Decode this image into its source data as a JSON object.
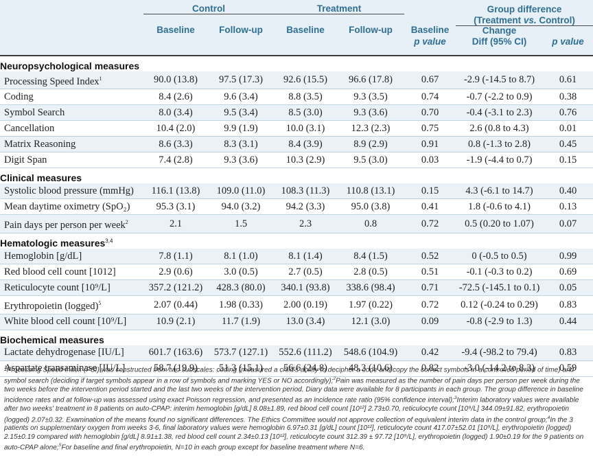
{
  "header": {
    "control": "Control",
    "treatment": "Treatment",
    "group_difference": "Group difference",
    "treatment_vs_control_pre": "(Treatment ",
    "vs": "vs.",
    "treatment_vs_control_post": " Control)",
    "baseline": "Baseline",
    "follow_up": "Follow-up",
    "baseline_p_line1": "Baseline",
    "baseline_p_line2": "p value",
    "change_line1": "Change",
    "change_line2": "Diff (95% CI)",
    "p_value": "p value"
  },
  "sections": [
    {
      "title": "Neuropsychological measures",
      "sup": "",
      "rows": [
        {
          "label": "Processing Speed Index",
          "sup": "1",
          "c_base": "90.0 (13.8)",
          "c_follow": "97.5 (17.3)",
          "t_base": "92.6 (15.5)",
          "t_follow": "96.6 (17.8)",
          "base_p": "0.67",
          "diff": "-2.9 (-14.5 to 8.7)",
          "p": "0.61"
        },
        {
          "label": "Coding",
          "sup": "",
          "c_base": "8.4 (2.6)",
          "c_follow": "9.6 (3.4)",
          "t_base": "8.8 (3.5)",
          "t_follow": "9.3 (3.5)",
          "base_p": "0.74",
          "diff": "-0.7 (-2.2 to 0.9)",
          "p": "0.38"
        },
        {
          "label": "Symbol Search",
          "sup": "",
          "c_base": "8.0 (3.4)",
          "c_follow": "9.5 (3.4)",
          "t_base": "8.5 (3.0)",
          "t_follow": "9.3 (3.6)",
          "base_p": "0.70",
          "diff": "-0.4 (-3.1 to 2.3)",
          "p": "0.76"
        },
        {
          "label": "Cancellation",
          "sup": "",
          "c_base": "10.4 (2.0)",
          "c_follow": "9.9 (1.9)",
          "t_base": "10.0 (3.1)",
          "t_follow": "12.3 (2.3)",
          "base_p": "0.75",
          "diff": "2.6 (0.8 to 4.3)",
          "p": "0.01"
        },
        {
          "label": "Matrix Reasoning",
          "sup": "",
          "c_base": "8.6 (3.3)",
          "c_follow": "8.3 (3.1)",
          "t_base": "8.4 (3.9)",
          "t_follow": "8.9 (2.9)",
          "base_p": "0.91",
          "diff": "0.8 (-1.3 to 2.8)",
          "p": "0.45"
        },
        {
          "label": "Digit Span",
          "sup": "",
          "c_base": "7.4 (2.8)",
          "c_follow": "9.3 (3.6)",
          "t_base": "10.3 (2.9)",
          "t_follow": "9.5 (3.0)",
          "base_p": "0.03",
          "diff": "-1.9 (-4.4 to 0.7)",
          "p": "0.15"
        }
      ]
    },
    {
      "title": "Clinical measures",
      "sup": "",
      "rows": [
        {
          "label": "Systolic blood pressure (mmHg)",
          "sup": "",
          "c_base": "116.1 (13.8)",
          "c_follow": "109.0 (11.0)",
          "t_base": "108.3 (11.3)",
          "t_follow": "110.8 (13.1)",
          "base_p": "0.15",
          "diff": "4.3 (-6.1 to 14.7)",
          "p": "0.40"
        },
        {
          "label": "Mean daytime oximetry (SpO₂)",
          "sup": "",
          "c_base": "95.3 (3.1)",
          "c_follow": "94.0 (3.2)",
          "t_base": "94.2 (3.3)",
          "t_follow": "95.0 (3.8)",
          "base_p": "0.41",
          "diff": "1.8 (-0.6 to 4.1)",
          "p": "0.13"
        },
        {
          "label": "Pain days per person per week",
          "sup": "2",
          "c_base": "2.1",
          "c_follow": "1.5",
          "t_base": "2.3",
          "t_follow": "0.8",
          "base_p": "0.72",
          "diff": "0.5 (0.20 to 1.07)",
          "p": "0.07"
        }
      ]
    },
    {
      "title": "Hematologic measures",
      "sup": "3,4",
      "rows": [
        {
          "label": "Hemoglobin [g/dL]",
          "sup": "",
          "c_base": "7.8 (1.1)",
          "c_follow": "8.1 (1.0)",
          "t_base": "8.1 (1.4)",
          "t_follow": "8.4 (1.5)",
          "base_p": "0.52",
          "diff": "0 (-0.5 to 0.5)",
          "p": "0.99"
        },
        {
          "label": "Red blood cell count [1012]",
          "sup": "",
          "c_base": "2.9 (0.6)",
          "c_follow": "3.0 (0.5)",
          "t_base": "2.7 (0.5)",
          "t_follow": "2.8 (0.5)",
          "base_p": "0.51",
          "diff": "-0.1 (-0.3 to 0.2)",
          "p": "0.69"
        },
        {
          "label": "Reticulocyte count [10⁹/L]",
          "sup": "",
          "c_base": "357.2 (121.2)",
          "c_follow": "428.3 (80.0)",
          "t_base": "340.1 (93.8)",
          "t_follow": "338.6 (98.4)",
          "base_p": "0.71",
          "diff": "-72.5 (-145.1 to 0.1)",
          "p": "0.05"
        },
        {
          "label": "Erythropoietin (logged)",
          "sup": "5",
          "c_base": "2.07 (0.44)",
          "c_follow": "1.98 (0.33)",
          "t_base": "2.00 (0.19)",
          "t_follow": "1.97 (0.22)",
          "base_p": "0.72",
          "diff": "0.12 (-0.24 to 0.29)",
          "p": "0.83"
        },
        {
          "label": "White blood cell count [10⁹/L]",
          "sup": "",
          "c_base": "10.9 (2.1)",
          "c_follow": "11.7 (1.9)",
          "t_base": "13.0 (3.4)",
          "t_follow": "12.1 (3.0)",
          "base_p": "0.09",
          "diff": "-0.8 (-2.9 to 1.3)",
          "p": "0.44"
        }
      ]
    },
    {
      "title": "Biochemical measures",
      "sup": "",
      "rows": [
        {
          "label": "Lactate dehydrogenase [IU/L]",
          "sup": "",
          "c_base": "601.7 (163.6)",
          "c_follow": "573.7 (127.1)",
          "t_base": "552.6 (111.2)",
          "t_follow": "548.6 (104.9)",
          "base_p": "0.42",
          "diff": "-9.4 (-98.2 to 79.4)",
          "p": "0.83"
        },
        {
          "label": "Aspartate transaminase [IU/L]",
          "sup": "",
          "c_base": "58.7 (19.9)",
          "c_follow": "51.3 (15.1)",
          "t_base": "56.6 (24.8)",
          "t_follow": "48.3 (10.6)",
          "base_p": "0.82",
          "diff": "-3.0 (-14.2 to 8.3)",
          "p": "0.59"
        }
      ]
    }
  ],
  "footnote": [
    {
      "sup": "1",
      "text": "Processing Speed Index (PSI) was constructed from two subscales: coding (measured a child's ability to decipher a code and copy the correct symbols in a controlled period of time) and symbol search (deciding if target symbols appear in a row of symbols and marking YES or NO accordingly);"
    },
    {
      "sup": "2",
      "text": "Pain was measured as the number of pain days per person per week during the two weeks before the intervention period started and the last two weeks of the intervention period. Diary data were available for 8 participants in each group. The group difference in baseline incidence rates and at follow-up was assessed using exact Poisson regression, and presented as an incidence rate ratio (95% confidence interval);"
    },
    {
      "sup": "3",
      "text": "Interim laboratory values were available after two weeks' treatment in 8 patients on auto-CPAP: interim hemoglobin [g/dL] 8.08±1.89, red blood cell count [10¹²] 2.73±0.70, reticulocyte count [10⁹/L] 344.09±91.82, erythropoietin (logged) 2.07±0.32. Examination of the means found no significant differences. The Ethics Committee would not approve collection of equivalent interim data in the control group;"
    },
    {
      "sup": "4",
      "text": "In the 3 patients on supplementary oxygen from weeks 3-6, final laboratory values were hemoglobin 6.97±0.31 [g/dL] count [10¹²], reticulocyte count 417.07±52.01 [10⁹/L], erythropoietin (logged) 2.15±0.19 compared with hemoglobin [g/dL] 8.91±1.38, red blood cell count 2.34±0.13 [10¹²], reticulocyte count 312.39 ± 97.72 [10⁹/L], erythropoietin (logged) 1.90±0.19 for the 9 patients on auto-CPAP alone;"
    },
    {
      "sup": "5",
      "text": "For baseline and final erythropoietin, N=10 in each group except for baseline treatment where N=6."
    }
  ]
}
